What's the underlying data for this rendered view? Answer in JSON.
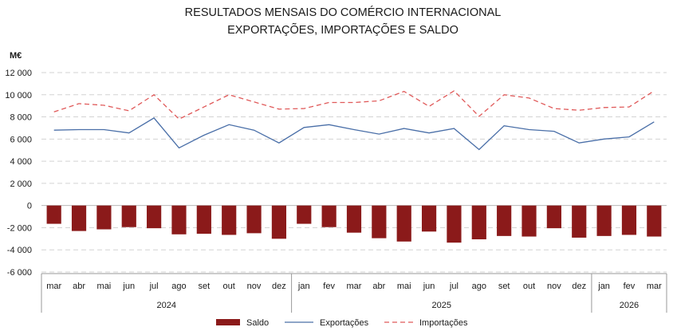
{
  "chart_data": {
    "type": "bar+line",
    "title": [
      "RESULTADOS MENSAIS DO COMÉRCIO INTERNACIONAL",
      "EXPORTAÇÕES, IMPORTAÇÕES E SALDO"
    ],
    "ylabel": "M€",
    "ylim": [
      -6000,
      12000
    ],
    "yticks": [
      -6000,
      -4000,
      -2000,
      0,
      2000,
      4000,
      6000,
      8000,
      10000,
      12000
    ],
    "ytick_labels": [
      "-6 000",
      "-4 000",
      "-2 000",
      "0",
      "2 000",
      "4 000",
      "6 000",
      "8 000",
      "10 000",
      "12 000"
    ],
    "grid": true,
    "legend_position": "bottom",
    "categories": [
      "mar",
      "abr",
      "mai",
      "jun",
      "jul",
      "ago",
      "set",
      "out",
      "nov",
      "dez",
      "jan",
      "fev",
      "mar",
      "abr",
      "mai",
      "jun",
      "jul",
      "ago",
      "set",
      "out",
      "nov",
      "dez",
      "jan",
      "fev",
      "mar"
    ],
    "year_groups": [
      {
        "label": "2024",
        "count": 10
      },
      {
        "label": "2025",
        "count": 12
      },
      {
        "label": "2026",
        "count": 3
      }
    ],
    "series": [
      {
        "name": "Saldo",
        "kind": "bar",
        "color": "#8b1a1a",
        "values": [
          -1650,
          -2300,
          -2150,
          -1950,
          -2050,
          -2600,
          -2550,
          -2650,
          -2500,
          -3000,
          -1650,
          -1950,
          -2450,
          -2950,
          -3250,
          -2350,
          -3350,
          -3050,
          -2750,
          -2800,
          -2050,
          -2900,
          -2750,
          -2650,
          -2800
        ]
      },
      {
        "name": "Exportações",
        "kind": "line",
        "color": "#4a6fa8",
        "values": [
          6800,
          6850,
          6850,
          6550,
          7900,
          5200,
          6350,
          7300,
          6800,
          5650,
          7050,
          7300,
          6850,
          6450,
          6950,
          6550,
          6950,
          5050,
          7200,
          6850,
          6700,
          5650,
          6000,
          6200,
          7550
        ]
      },
      {
        "name": "Importações",
        "kind": "dashed-line",
        "color": "#e05a5a",
        "values": [
          8450,
          9200,
          9050,
          8550,
          10000,
          7800,
          8900,
          10000,
          9350,
          8700,
          8750,
          9300,
          9300,
          9450,
          10300,
          8950,
          10350,
          8050,
          10000,
          9700,
          8750,
          8600,
          8850,
          8900,
          10350
        ]
      }
    ]
  }
}
